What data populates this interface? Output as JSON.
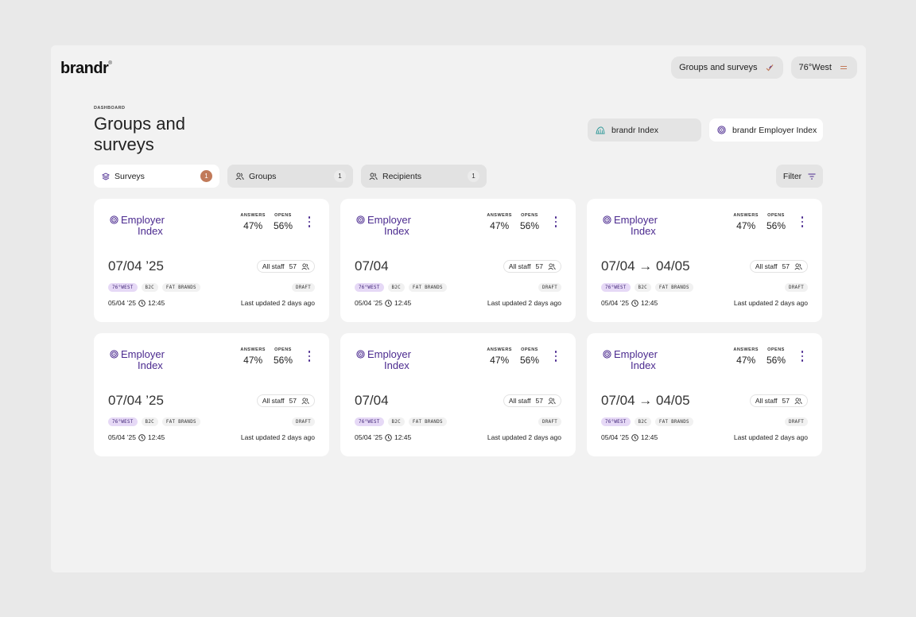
{
  "app": {
    "logo": "brandr",
    "logo_mark": "®"
  },
  "header": {
    "groups_button": "Groups and surveys",
    "workspace_button": "76°West"
  },
  "page": {
    "eyebrow": "DASHBOARD",
    "title": "Groups and surveys"
  },
  "index_switch": [
    {
      "label": "brandr Index",
      "active": false
    },
    {
      "label": "brandr Employer Index",
      "active": true
    }
  ],
  "tabs": [
    {
      "label": "Surveys",
      "count": "1",
      "active": true
    },
    {
      "label": "Groups",
      "count": "1",
      "active": false
    },
    {
      "label": "Recipients",
      "count": "1",
      "active": false
    }
  ],
  "filter_label": "Filter",
  "card_labels": {
    "brand_line1": "Employer",
    "brand_line2": "Index",
    "answers_key": "ANSWERS",
    "opens_key": "OPENS"
  },
  "cards": [
    {
      "answers": "47%",
      "opens": "56%",
      "date": "07/04 ’25",
      "audience": "All staff",
      "audience_count": "57",
      "tags": [
        "76°WEST",
        "B2C",
        "FAT BRANDS"
      ],
      "status": "DRAFT",
      "created": "05/04 ’25",
      "time": "12:45",
      "updated": "Last updated 2 days ago"
    },
    {
      "answers": "47%",
      "opens": "56%",
      "date": "07/04",
      "audience": "All staff",
      "audience_count": "57",
      "tags": [
        "76°WEST",
        "B2C",
        "FAT BRANDS"
      ],
      "status": "DRAFT",
      "created": "05/04 ’25",
      "time": "12:45",
      "updated": "Last updated 2 days ago"
    },
    {
      "answers": "47%",
      "opens": "56%",
      "date": "07/04 → 04/05",
      "audience": "All staff",
      "audience_count": "57",
      "tags": [
        "76°WEST",
        "B2C",
        "FAT BRANDS"
      ],
      "status": "DRAFT",
      "created": "05/04 ’25",
      "time": "12:45",
      "updated": "Last updated 2 days ago"
    },
    {
      "answers": "47%",
      "opens": "56%",
      "date": "07/04 ’25",
      "audience": "All staff",
      "audience_count": "57",
      "tags": [
        "76°WEST",
        "B2C",
        "FAT BRANDS"
      ],
      "status": "DRAFT",
      "created": "05/04 ’25",
      "time": "12:45",
      "updated": "Last updated 2 days ago"
    },
    {
      "answers": "47%",
      "opens": "56%",
      "date": "07/04",
      "audience": "All staff",
      "audience_count": "57",
      "tags": [
        "76°WEST",
        "B2C",
        "FAT BRANDS"
      ],
      "status": "DRAFT",
      "created": "05/04 ’25",
      "time": "12:45",
      "updated": "Last updated 2 days ago"
    },
    {
      "answers": "47%",
      "opens": "56%",
      "date": "07/04 → 04/05",
      "audience": "All staff",
      "audience_count": "57",
      "tags": [
        "76°WEST",
        "B2C",
        "FAT BRANDS"
      ],
      "status": "DRAFT",
      "created": "05/04 ’25",
      "time": "12:45",
      "updated": "Last updated 2 days ago"
    }
  ],
  "colors": {
    "accent_purple": "#4b2a8f",
    "badge_orange": "#c17a59",
    "tag_purple_bg": "#e6d9f6"
  }
}
